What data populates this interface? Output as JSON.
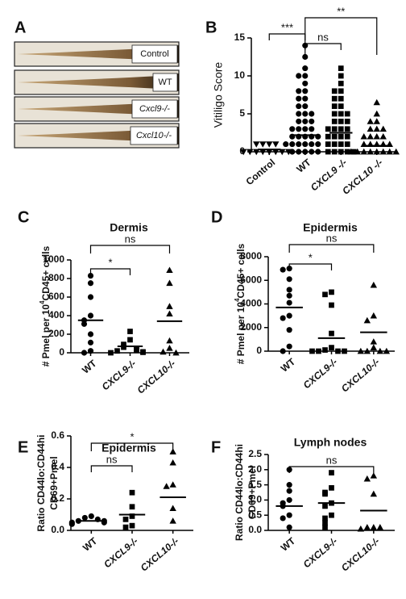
{
  "panel_a": {
    "letter": "A",
    "labels": [
      "Control",
      "WT",
      "Cxcl9-/-",
      "Cxcl10-/-"
    ]
  },
  "chart_data": [
    {
      "type": "dot",
      "panel": "B",
      "ylabel": [
        "Vitiligo Score"
      ],
      "categories": [
        "Control",
        "WT",
        "CXCL9 -/-",
        "CXCL10 -/-"
      ],
      "markers": [
        "triangle-down",
        "circle",
        "square",
        "triangle"
      ],
      "groups": [
        [
          1,
          1,
          1,
          1,
          0,
          0,
          0,
          0,
          0,
          0,
          0,
          0
        ],
        [
          14,
          12.5,
          11,
          10,
          10,
          9,
          8,
          8,
          7,
          7,
          6,
          6,
          5,
          5,
          5,
          4,
          4,
          4,
          3,
          3,
          3,
          3,
          2,
          2,
          2,
          2,
          2,
          1,
          1,
          1,
          1,
          1,
          1,
          0,
          0,
          0,
          0,
          0
        ],
        [
          11,
          10,
          9,
          8,
          8,
          7,
          7,
          6,
          6,
          5,
          5,
          5,
          4,
          4,
          4,
          3,
          3,
          3,
          3,
          2,
          2,
          2,
          2,
          1,
          1,
          1,
          1,
          0,
          0,
          0,
          0,
          0
        ],
        [
          6.5,
          5,
          4,
          4,
          3,
          3,
          3,
          2,
          2,
          2,
          2,
          1,
          1,
          1,
          1,
          1,
          0,
          0,
          0,
          0,
          0,
          0,
          0,
          0
        ]
      ],
      "means": [
        0.3,
        2.2,
        2.5,
        0.8
      ],
      "ylim": [
        0,
        15
      ],
      "yticks": [
        0,
        5,
        10,
        15
      ],
      "brackets": [
        {
          "span": [
            0,
            1
          ],
          "label": "***"
        },
        {
          "span": [
            1,
            2
          ],
          "label": "ns"
        },
        {
          "span": [
            1,
            3
          ],
          "label": "**"
        }
      ]
    },
    {
      "type": "dot",
      "panel": "C",
      "title": "Dermis",
      "ylabel": [
        "# Pmel per 10",
        "4",
        "CD45+ cells"
      ],
      "categories": [
        "WT",
        "CXCL9-/-",
        "CXCL10-/-"
      ],
      "markers": [
        "circle",
        "square",
        "triangle"
      ],
      "groups": [
        [
          830,
          750,
          600,
          400,
          350,
          310,
          200,
          110,
          20,
          0
        ],
        [
          230,
          140,
          90,
          60,
          40,
          30,
          20,
          10,
          5,
          0
        ],
        [
          890,
          750,
          500,
          420,
          130,
          50,
          10,
          0
        ]
      ],
      "means": [
        350,
        70,
        340
      ],
      "ylim": [
        0,
        1000
      ],
      "yticks": [
        0,
        200,
        400,
        600,
        800,
        1000
      ],
      "brackets": [
        {
          "span": [
            0,
            1
          ],
          "label": "*"
        },
        {
          "span": [
            0,
            2
          ],
          "label": "ns"
        }
      ]
    },
    {
      "type": "dot",
      "panel": "D",
      "title": "Epidermis",
      "ylabel": [
        "# Pmel per 10",
        "4",
        "CD45+ cells"
      ],
      "categories": [
        "WT",
        "CXCL9-/-",
        "CXCL10-/-"
      ],
      "markers": [
        "circle",
        "square",
        "triangle"
      ],
      "groups": [
        [
          7000,
          6900,
          6100,
          5200,
          4700,
          4100,
          3000,
          2800,
          1800,
          400,
          0
        ],
        [
          5000,
          4800,
          3900,
          1500,
          300,
          100,
          0,
          0,
          0,
          0
        ],
        [
          5600,
          3000,
          2600,
          800,
          300,
          0,
          0,
          0,
          0
        ]
      ],
      "means": [
        3700,
        1100,
        1600
      ],
      "ylim": [
        0,
        8000
      ],
      "yticks": [
        0,
        2000,
        4000,
        6000,
        8000
      ],
      "brackets": [
        {
          "span": [
            0,
            1
          ],
          "label": "*"
        },
        {
          "span": [
            0,
            2
          ],
          "label": "ns"
        }
      ]
    },
    {
      "type": "dot",
      "panel": "E",
      "title": "Epidermis",
      "ylabel": [
        "Ratio  CD44lo:CD44hi",
        "CD69+Pmel"
      ],
      "categories": [
        "WT",
        "CXCL9-/-",
        "CXCL10-/-"
      ],
      "markers": [
        "circle",
        "square",
        "triangle"
      ],
      "groups": [
        [
          0.09,
          0.08,
          0.07,
          0.06,
          0.06,
          0.05,
          0.05,
          0.04
        ],
        [
          0.24,
          0.15,
          0.09,
          0.07,
          0.03,
          0.02
        ],
        [
          0.5,
          0.43,
          0.29,
          0.28,
          0.14,
          0.06
        ]
      ],
      "means": [
        0.06,
        0.1,
        0.21
      ],
      "ylim": [
        0,
        0.6
      ],
      "yticks": [
        {
          "value": 0,
          "label": "0.0"
        },
        0.2,
        0.4,
        0.6
      ],
      "brackets": [
        {
          "span": [
            0,
            1
          ],
          "label": "ns"
        },
        {
          "span": [
            0,
            2
          ],
          "label": "*"
        }
      ]
    },
    {
      "type": "dot",
      "panel": "F",
      "title": "Lymph nodes",
      "ylabel": [
        "Ratio  CD44lo:CD44hi",
        "CD69+Pmel"
      ],
      "categories": [
        "WT",
        "CXCL9-/-",
        "CXCL10-/-"
      ],
      "markers": [
        "circle",
        "square",
        "triangle"
      ],
      "groups": [
        [
          2.0,
          1.5,
          1.3,
          1.0,
          0.9,
          0.8,
          0.5,
          0.4,
          0.1
        ],
        [
          1.9,
          1.4,
          1.25,
          1.2,
          0.9,
          0.8,
          0.5,
          0.4,
          0.25,
          0.1
        ],
        [
          1.8,
          1.7,
          1.2,
          0.1,
          0.1,
          0.1,
          0.05
        ]
      ],
      "means": [
        0.8,
        0.9,
        0.65
      ],
      "ylim": [
        0,
        2.5
      ],
      "yticks": [
        {
          "value": 0,
          "label": "0.0"
        },
        0.5,
        {
          "value": 1,
          "label": "1.0"
        },
        1.5,
        {
          "value": 2,
          "label": "2.0"
        },
        2.5
      ],
      "brackets": [
        {
          "span": [
            0,
            2
          ],
          "label": "ns"
        }
      ]
    }
  ]
}
